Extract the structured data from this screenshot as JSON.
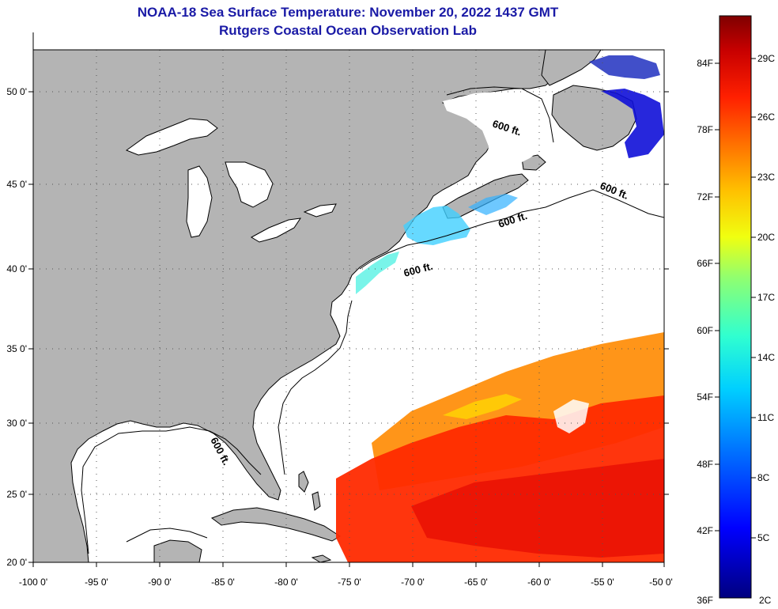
{
  "title": "NOAA-18 Sea Surface Temperature:  November 20, 2022 1437 GMT",
  "subtitle": "Rutgers Coastal Ocean Observation Lab",
  "lon_ticks": [
    "-100 0'",
    "-95 0'",
    "-90 0'",
    "-85 0'",
    "-80 0'",
    "-75 0'",
    "-70 0'",
    "-65 0'",
    "-60 0'",
    "-55 0'",
    "-50 0'"
  ],
  "lat_ticks": [
    "50 0'",
    "45 0'",
    "40 0'",
    "35 0'",
    "30 0'",
    "25 0'",
    "20 0'"
  ],
  "contour_label": "600 ft.",
  "contour_labels": [
    "600 ft.",
    "600 ft.",
    "600 ft.",
    "600 ft.",
    "600 ft."
  ],
  "colorbar": {
    "fahrenheit": [
      "84F",
      "78F",
      "72F",
      "66F",
      "60F",
      "54F",
      "48F",
      "42F",
      "36F"
    ],
    "celsius": [
      "29C",
      "26C",
      "23C",
      "20C",
      "17C",
      "14C",
      "11C",
      "8C",
      "5C",
      "2C"
    ],
    "colors": [
      "#00007f",
      "#0000ff",
      "#0060ff",
      "#00c0ff",
      "#20ffe0",
      "#80ff80",
      "#e0ff20",
      "#ffd000",
      "#ff8000",
      "#ff3000",
      "#d00000",
      "#7f0000"
    ]
  },
  "colors": {
    "land": "#b4b4b4",
    "ocean": "#ffffff",
    "title": "#1a1aa6"
  }
}
